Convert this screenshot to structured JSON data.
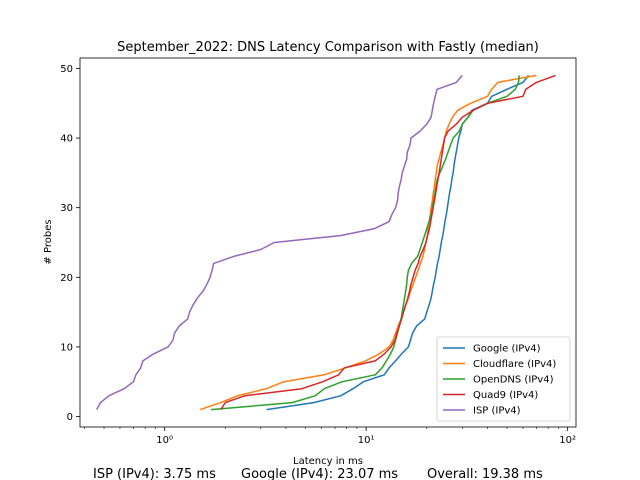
{
  "chart_data": {
    "type": "line",
    "title": "September_2022: DNS Latency Comparison with Fastly (median)",
    "xlabel": "Latency in ms",
    "ylabel": "# Probes",
    "x_scale": "log",
    "xlim": [
      0.38,
      110
    ],
    "ylim": [
      -1.5,
      51.5
    ],
    "x_ticks": [
      1,
      10,
      100
    ],
    "x_tick_labels": [
      "10⁰",
      "10¹",
      "10²"
    ],
    "y_ticks": [
      0,
      10,
      20,
      30,
      40,
      50
    ],
    "grid": false,
    "legend_position": "lower-right",
    "series": [
      {
        "name": "Google (IPv4)",
        "color": "#1f77b4",
        "points": [
          [
            3.2,
            1
          ],
          [
            5.5,
            2
          ],
          [
            7.5,
            3
          ],
          [
            8.6,
            4
          ],
          [
            9.7,
            5
          ],
          [
            12.3,
            6
          ],
          [
            13.0,
            7
          ],
          [
            14.0,
            8
          ],
          [
            15.0,
            9
          ],
          [
            16.2,
            10
          ],
          [
            16.6,
            11
          ],
          [
            17.0,
            12
          ],
          [
            17.8,
            13
          ],
          [
            19.5,
            14
          ],
          [
            20.0,
            15
          ],
          [
            20.5,
            16
          ],
          [
            21.0,
            17
          ],
          [
            21.3,
            18
          ],
          [
            21.6,
            19
          ],
          [
            22.0,
            20
          ],
          [
            22.3,
            21
          ],
          [
            22.6,
            22
          ],
          [
            23.0,
            23
          ],
          [
            23.3,
            24
          ],
          [
            23.6,
            25
          ],
          [
            24.0,
            26
          ],
          [
            24.3,
            27
          ],
          [
            24.6,
            28
          ],
          [
            25.0,
            29
          ],
          [
            25.3,
            30
          ],
          [
            25.6,
            31
          ],
          [
            25.9,
            32
          ],
          [
            26.3,
            33
          ],
          [
            26.6,
            34
          ],
          [
            27.0,
            35
          ],
          [
            27.3,
            36
          ],
          [
            27.6,
            37
          ],
          [
            28.0,
            38
          ],
          [
            28.4,
            39
          ],
          [
            28.8,
            40
          ],
          [
            29.5,
            41
          ],
          [
            30.0,
            42
          ],
          [
            32.0,
            43
          ],
          [
            33.5,
            44
          ],
          [
            40.0,
            45
          ],
          [
            42.0,
            46
          ],
          [
            50.0,
            47
          ],
          [
            60.0,
            48
          ],
          [
            64.0,
            49
          ]
        ]
      },
      {
        "name": "Cloudflare (IPv4)",
        "color": "#ff7f0e",
        "points": [
          [
            1.5,
            1
          ],
          [
            1.9,
            2
          ],
          [
            2.3,
            3
          ],
          [
            3.2,
            4
          ],
          [
            3.9,
            5
          ],
          [
            6.2,
            6
          ],
          [
            7.9,
            7
          ],
          [
            9.9,
            8
          ],
          [
            11.6,
            9
          ],
          [
            13.0,
            10
          ],
          [
            13.6,
            11
          ],
          [
            14.0,
            12
          ],
          [
            14.4,
            13
          ],
          [
            14.9,
            14
          ],
          [
            15.3,
            15
          ],
          [
            15.7,
            16
          ],
          [
            16.2,
            17
          ],
          [
            16.6,
            18
          ],
          [
            17.1,
            19
          ],
          [
            17.6,
            20
          ],
          [
            18.1,
            21
          ],
          [
            18.6,
            22
          ],
          [
            19.1,
            23
          ],
          [
            19.5,
            24
          ],
          [
            19.8,
            25
          ],
          [
            20.1,
            26
          ],
          [
            20.3,
            27
          ],
          [
            20.5,
            28
          ],
          [
            20.8,
            29
          ],
          [
            21.0,
            30
          ],
          [
            21.3,
            31
          ],
          [
            21.5,
            32
          ],
          [
            21.8,
            33
          ],
          [
            22.0,
            34
          ],
          [
            22.3,
            35
          ],
          [
            22.5,
            36
          ],
          [
            23.0,
            37
          ],
          [
            23.5,
            38
          ],
          [
            24.0,
            39
          ],
          [
            24.5,
            40
          ],
          [
            25.0,
            41
          ],
          [
            25.8,
            42
          ],
          [
            26.8,
            43
          ],
          [
            28.5,
            44
          ],
          [
            33.0,
            45
          ],
          [
            40.0,
            46
          ],
          [
            42.0,
            47
          ],
          [
            45.0,
            48
          ],
          [
            70.0,
            49
          ]
        ]
      },
      {
        "name": "OpenDNS (IPv4)",
        "color": "#2ca02c",
        "points": [
          [
            1.7,
            1
          ],
          [
            4.3,
            2
          ],
          [
            5.6,
            3
          ],
          [
            6.2,
            4
          ],
          [
            7.6,
            5
          ],
          [
            11.1,
            6
          ],
          [
            12.0,
            7
          ],
          [
            12.6,
            8
          ],
          [
            13.2,
            9
          ],
          [
            13.7,
            10
          ],
          [
            14.0,
            11
          ],
          [
            14.3,
            12
          ],
          [
            14.6,
            13
          ],
          [
            14.9,
            14
          ],
          [
            15.1,
            15
          ],
          [
            15.3,
            16
          ],
          [
            15.5,
            17
          ],
          [
            15.7,
            18
          ],
          [
            15.9,
            19
          ],
          [
            16.0,
            20
          ],
          [
            16.2,
            21
          ],
          [
            16.8,
            22
          ],
          [
            18.0,
            23
          ],
          [
            18.5,
            24
          ],
          [
            19.0,
            25
          ],
          [
            19.5,
            26
          ],
          [
            20.0,
            27
          ],
          [
            20.5,
            28
          ],
          [
            21.0,
            29
          ],
          [
            21.3,
            30
          ],
          [
            21.6,
            31
          ],
          [
            21.9,
            32
          ],
          [
            22.2,
            33
          ],
          [
            22.5,
            34
          ],
          [
            23.2,
            35
          ],
          [
            24.0,
            36
          ],
          [
            24.8,
            37
          ],
          [
            25.5,
            38
          ],
          [
            26.2,
            39
          ],
          [
            27.0,
            40
          ],
          [
            29.0,
            41
          ],
          [
            30.0,
            42
          ],
          [
            32.0,
            43
          ],
          [
            34.0,
            44
          ],
          [
            40.0,
            45
          ],
          [
            50.0,
            46
          ],
          [
            55.0,
            47
          ],
          [
            57.0,
            48
          ],
          [
            57.5,
            49
          ]
        ]
      },
      {
        "name": "Quad9 (IPv4)",
        "color": "#d62728",
        "points": [
          [
            1.9,
            1
          ],
          [
            2.0,
            2
          ],
          [
            2.5,
            3
          ],
          [
            4.8,
            4
          ],
          [
            6.1,
            5
          ],
          [
            7.3,
            6
          ],
          [
            7.8,
            7
          ],
          [
            11.1,
            8
          ],
          [
            12.3,
            9
          ],
          [
            13.3,
            10
          ],
          [
            13.9,
            11
          ],
          [
            14.2,
            12
          ],
          [
            14.6,
            13
          ],
          [
            15.0,
            14
          ],
          [
            15.3,
            15
          ],
          [
            15.7,
            16
          ],
          [
            16.1,
            17
          ],
          [
            16.4,
            18
          ],
          [
            16.7,
            19
          ],
          [
            17.1,
            20
          ],
          [
            17.5,
            21
          ],
          [
            18.1,
            22
          ],
          [
            18.5,
            23
          ],
          [
            19.2,
            24
          ],
          [
            19.8,
            25
          ],
          [
            20.2,
            26
          ],
          [
            20.6,
            27
          ],
          [
            20.9,
            28
          ],
          [
            21.2,
            29
          ],
          [
            21.5,
            30
          ],
          [
            21.8,
            31
          ],
          [
            22.1,
            32
          ],
          [
            22.4,
            33
          ],
          [
            22.7,
            34
          ],
          [
            23.0,
            35
          ],
          [
            23.3,
            36
          ],
          [
            23.6,
            37
          ],
          [
            23.9,
            38
          ],
          [
            24.2,
            39
          ],
          [
            24.5,
            40
          ],
          [
            25.5,
            41
          ],
          [
            28.0,
            42
          ],
          [
            30.0,
            43
          ],
          [
            34.0,
            44
          ],
          [
            40.0,
            45
          ],
          [
            60.0,
            46
          ],
          [
            62.0,
            47
          ],
          [
            70.0,
            48
          ],
          [
            87.0,
            49
          ]
        ]
      },
      {
        "name": "ISP (IPv4)",
        "color": "#9467bd",
        "points": [
          [
            0.46,
            1
          ],
          [
            0.48,
            2
          ],
          [
            0.53,
            3
          ],
          [
            0.63,
            4
          ],
          [
            0.7,
            5
          ],
          [
            0.72,
            6
          ],
          [
            0.76,
            7
          ],
          [
            0.78,
            8
          ],
          [
            0.88,
            9
          ],
          [
            1.04,
            10
          ],
          [
            1.1,
            11
          ],
          [
            1.12,
            12
          ],
          [
            1.18,
            13
          ],
          [
            1.3,
            14
          ],
          [
            1.33,
            15
          ],
          [
            1.38,
            16
          ],
          [
            1.45,
            17
          ],
          [
            1.55,
            18
          ],
          [
            1.62,
            19
          ],
          [
            1.68,
            20
          ],
          [
            1.72,
            21
          ],
          [
            1.75,
            22
          ],
          [
            2.2,
            23
          ],
          [
            3.0,
            24
          ],
          [
            3.5,
            25
          ],
          [
            7.5,
            26
          ],
          [
            11.0,
            27
          ],
          [
            13.0,
            28
          ],
          [
            13.4,
            29
          ],
          [
            14.0,
            30
          ],
          [
            14.3,
            31
          ],
          [
            14.4,
            32
          ],
          [
            14.6,
            33
          ],
          [
            14.9,
            34
          ],
          [
            15.1,
            35
          ],
          [
            15.5,
            36
          ],
          [
            15.9,
            37
          ],
          [
            16.0,
            38
          ],
          [
            16.5,
            39
          ],
          [
            16.7,
            40
          ],
          [
            18.5,
            41
          ],
          [
            20.0,
            42
          ],
          [
            21.0,
            43
          ],
          [
            21.3,
            44
          ],
          [
            21.6,
            45
          ],
          [
            22.0,
            46
          ],
          [
            22.5,
            47
          ],
          [
            28.0,
            48
          ],
          [
            30.0,
            49
          ]
        ]
      }
    ]
  },
  "footer": {
    "isp": "ISP (IPv4): 3.75 ms",
    "google": "Google (IPv4): 23.07 ms",
    "overall": "Overall: 19.38 ms"
  }
}
